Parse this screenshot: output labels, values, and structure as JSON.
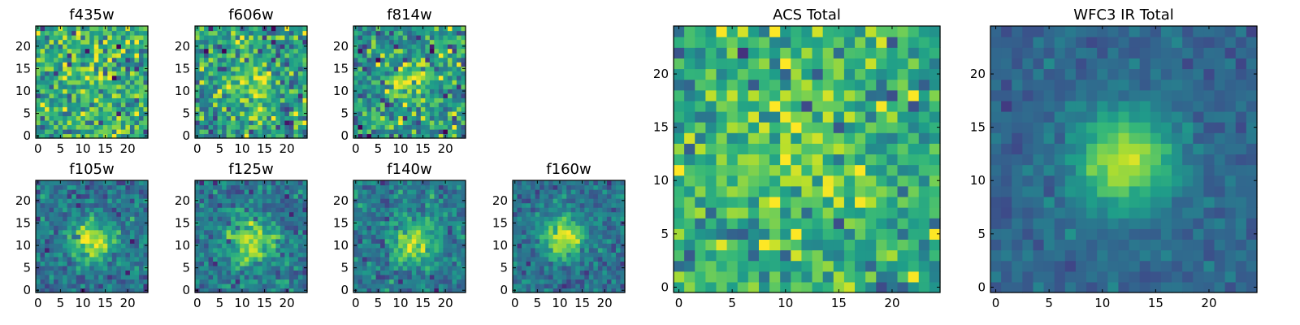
{
  "chart_data": [
    {
      "type": "heatmap",
      "id": "f435w",
      "title": "f435w",
      "grid_size": 25,
      "xticks": [
        0,
        5,
        10,
        15,
        20
      ],
      "yticks": [
        0,
        5,
        10,
        15,
        20
      ],
      "xlim": [
        -0.5,
        24.5
      ],
      "ylim": [
        -0.5,
        24.5
      ],
      "colormap": "viridis",
      "peak": [
        12,
        12
      ],
      "peak_strength": 0.05,
      "peak_sigma": 4.0,
      "noise_level": 0.42,
      "base_level": 0.62
    },
    {
      "type": "heatmap",
      "id": "f606w",
      "title": "f606w",
      "grid_size": 25,
      "xticks": [
        0,
        5,
        10,
        15,
        20
      ],
      "yticks": [
        0,
        5,
        10,
        15,
        20
      ],
      "xlim": [
        -0.5,
        24.5
      ],
      "ylim": [
        -0.5,
        24.5
      ],
      "colormap": "viridis",
      "peak": [
        12,
        12
      ],
      "peak_strength": 0.3,
      "peak_sigma": 3.2,
      "noise_level": 0.42,
      "base_level": 0.55
    },
    {
      "type": "heatmap",
      "id": "f814w",
      "title": "f814w",
      "grid_size": 25,
      "xticks": [
        0,
        5,
        10,
        15,
        20
      ],
      "yticks": [
        0,
        5,
        10,
        15,
        20
      ],
      "xlim": [
        -0.5,
        24.5
      ],
      "ylim": [
        -0.5,
        24.5
      ],
      "colormap": "viridis",
      "peak": [
        12,
        12
      ],
      "peak_strength": 0.35,
      "peak_sigma": 3.0,
      "noise_level": 0.42,
      "base_level": 0.52
    },
    {
      "type": "heatmap",
      "id": "f105w",
      "title": "f105w",
      "grid_size": 25,
      "xticks": [
        0,
        5,
        10,
        15,
        20
      ],
      "yticks": [
        0,
        5,
        10,
        15,
        20
      ],
      "xlim": [
        -0.5,
        24.5
      ],
      "ylim": [
        -0.5,
        24.5
      ],
      "colormap": "viridis",
      "peak": [
        12,
        11
      ],
      "peak_strength": 0.55,
      "peak_sigma": 3.2,
      "noise_level": 0.25,
      "base_level": 0.38
    },
    {
      "type": "heatmap",
      "id": "f125w",
      "title": "f125w",
      "grid_size": 25,
      "xticks": [
        0,
        5,
        10,
        15,
        20
      ],
      "yticks": [
        0,
        5,
        10,
        15,
        20
      ],
      "xlim": [
        -0.5,
        24.5
      ],
      "ylim": [
        -0.5,
        24.5
      ],
      "colormap": "viridis",
      "peak": [
        12,
        11
      ],
      "peak_strength": 0.5,
      "peak_sigma": 3.5,
      "noise_level": 0.27,
      "base_level": 0.4
    },
    {
      "type": "heatmap",
      "id": "f140w",
      "title": "f140w",
      "grid_size": 25,
      "xticks": [
        0,
        5,
        10,
        15,
        20
      ],
      "yticks": [
        0,
        5,
        10,
        15,
        20
      ],
      "xlim": [
        -0.5,
        24.5
      ],
      "ylim": [
        -0.5,
        24.5
      ],
      "colormap": "viridis",
      "peak": [
        13,
        11
      ],
      "peak_strength": 0.5,
      "peak_sigma": 3.4,
      "noise_level": 0.25,
      "base_level": 0.4
    },
    {
      "type": "heatmap",
      "id": "f160w",
      "title": "f160w",
      "grid_size": 25,
      "xticks": [
        0,
        5,
        10,
        15,
        20
      ],
      "yticks": [
        0,
        5,
        10,
        15,
        20
      ],
      "xlim": [
        -0.5,
        24.5
      ],
      "ylim": [
        -0.5,
        24.5
      ],
      "colormap": "viridis",
      "peak": [
        11,
        12
      ],
      "peak_strength": 0.55,
      "peak_sigma": 3.2,
      "noise_level": 0.22,
      "base_level": 0.38
    },
    {
      "type": "heatmap",
      "id": "acs-total",
      "title": "ACS Total",
      "grid_size": 25,
      "xticks": [
        0,
        5,
        10,
        15,
        20
      ],
      "yticks": [
        0,
        5,
        10,
        15,
        20
      ],
      "xlim": [
        -0.5,
        24.5
      ],
      "ylim": [
        -0.5,
        24.5
      ],
      "colormap": "viridis",
      "peak": [
        11,
        12
      ],
      "peak_strength": 0.22,
      "peak_sigma": 3.5,
      "noise_level": 0.34,
      "base_level": 0.62
    },
    {
      "type": "heatmap",
      "id": "wfc3-ir-total",
      "title": "WFC3 IR Total",
      "grid_size": 25,
      "xticks": [
        0,
        5,
        10,
        15,
        20
      ],
      "yticks": [
        0,
        5,
        10,
        15,
        20
      ],
      "xlim": [
        -0.5,
        24.5
      ],
      "ylim": [
        -0.5,
        24.5
      ],
      "colormap": "viridis",
      "peak": [
        12,
        12
      ],
      "peak_strength": 0.58,
      "peak_sigma": 3.2,
      "noise_level": 0.12,
      "base_level": 0.33
    }
  ]
}
